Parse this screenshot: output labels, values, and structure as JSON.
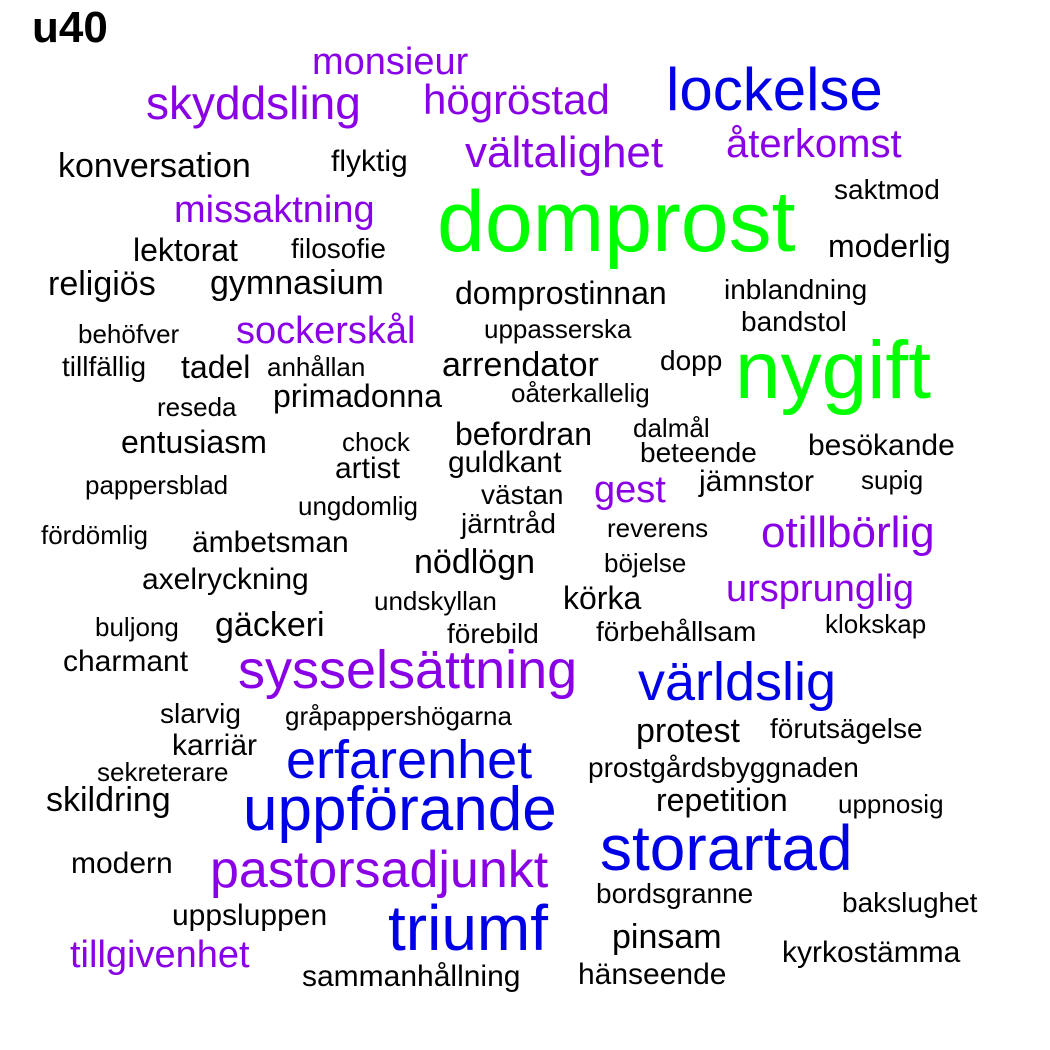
{
  "title": "u40",
  "colors": {
    "black": "#000000",
    "purple": "#8a00e6",
    "blue": "#0000e6",
    "green": "#00ff00"
  },
  "words": [
    {
      "text": "domprost",
      "color": "green"
    },
    {
      "text": "nygift",
      "color": "green"
    },
    {
      "text": "lockelse",
      "color": "blue"
    },
    {
      "text": "storartad",
      "color": "blue"
    },
    {
      "text": "uppförande",
      "color": "blue"
    },
    {
      "text": "triumf",
      "color": "blue"
    },
    {
      "text": "erfarenhet",
      "color": "blue"
    },
    {
      "text": "världslig",
      "color": "blue"
    },
    {
      "text": "sysselsättning",
      "color": "purple"
    },
    {
      "text": "pastorsadjunkt",
      "color": "purple"
    },
    {
      "text": "skyddsling",
      "color": "purple"
    },
    {
      "text": "högröstad",
      "color": "purple"
    },
    {
      "text": "vältalighet",
      "color": "purple"
    },
    {
      "text": "monsieur",
      "color": "purple"
    },
    {
      "text": "återkomst",
      "color": "purple"
    },
    {
      "text": "missaktning",
      "color": "purple"
    },
    {
      "text": "sockerskål",
      "color": "purple"
    },
    {
      "text": "otillbörlig",
      "color": "purple"
    },
    {
      "text": "ursprunglig",
      "color": "purple"
    },
    {
      "text": "gest",
      "color": "purple"
    },
    {
      "text": "tillgivenhet",
      "color": "purple"
    },
    {
      "text": "konversation",
      "color": "black"
    },
    {
      "text": "flyktig",
      "color": "black"
    },
    {
      "text": "saktmod",
      "color": "black"
    },
    {
      "text": "lektorat",
      "color": "black"
    },
    {
      "text": "filosofie",
      "color": "black"
    },
    {
      "text": "moderlig",
      "color": "black"
    },
    {
      "text": "religiös",
      "color": "black"
    },
    {
      "text": "gymnasium",
      "color": "black"
    },
    {
      "text": "domprostinnan",
      "color": "black"
    },
    {
      "text": "inblandning",
      "color": "black"
    },
    {
      "text": "bandstol",
      "color": "black"
    },
    {
      "text": "behöfver",
      "color": "black"
    },
    {
      "text": "uppasserska",
      "color": "black"
    },
    {
      "text": "tillfällig",
      "color": "black"
    },
    {
      "text": "tadel",
      "color": "black"
    },
    {
      "text": "anhållan",
      "color": "black"
    },
    {
      "text": "arrendator",
      "color": "black"
    },
    {
      "text": "dopp",
      "color": "black"
    },
    {
      "text": "reseda",
      "color": "black"
    },
    {
      "text": "primadonna",
      "color": "black"
    },
    {
      "text": "oåterkallelig",
      "color": "black"
    },
    {
      "text": "entusiasm",
      "color": "black"
    },
    {
      "text": "chock",
      "color": "black"
    },
    {
      "text": "befordran",
      "color": "black"
    },
    {
      "text": "dalmål",
      "color": "black"
    },
    {
      "text": "besökande",
      "color": "black"
    },
    {
      "text": "artist",
      "color": "black"
    },
    {
      "text": "guldkant",
      "color": "black"
    },
    {
      "text": "beteende",
      "color": "black"
    },
    {
      "text": "pappersblad",
      "color": "black"
    },
    {
      "text": "jämnstor",
      "color": "black"
    },
    {
      "text": "supig",
      "color": "black"
    },
    {
      "text": "västan",
      "color": "black"
    },
    {
      "text": "ungdomlig",
      "color": "black"
    },
    {
      "text": "järntråd",
      "color": "black"
    },
    {
      "text": "fördömlig",
      "color": "black"
    },
    {
      "text": "reverens",
      "color": "black"
    },
    {
      "text": "ämbetsman",
      "color": "black"
    },
    {
      "text": "nödlögn",
      "color": "black"
    },
    {
      "text": "böjelse",
      "color": "black"
    },
    {
      "text": "axelryckning",
      "color": "black"
    },
    {
      "text": "undskyllan",
      "color": "black"
    },
    {
      "text": "körka",
      "color": "black"
    },
    {
      "text": "buljong",
      "color": "black"
    },
    {
      "text": "gäckeri",
      "color": "black"
    },
    {
      "text": "förebild",
      "color": "black"
    },
    {
      "text": "förbehållsam",
      "color": "black"
    },
    {
      "text": "klokskap",
      "color": "black"
    },
    {
      "text": "charmant",
      "color": "black"
    },
    {
      "text": "slarvig",
      "color": "black"
    },
    {
      "text": "gråpappershögarna",
      "color": "black"
    },
    {
      "text": "karriär",
      "color": "black"
    },
    {
      "text": "protest",
      "color": "black"
    },
    {
      "text": "förutsägelse",
      "color": "black"
    },
    {
      "text": "sekreterare",
      "color": "black"
    },
    {
      "text": "prostgårdsbyggnaden",
      "color": "black"
    },
    {
      "text": "skildring",
      "color": "black"
    },
    {
      "text": "repetition",
      "color": "black"
    },
    {
      "text": "uppnosig",
      "color": "black"
    },
    {
      "text": "modern",
      "color": "black"
    },
    {
      "text": "bordsgranne",
      "color": "black"
    },
    {
      "text": "bakslughet",
      "color": "black"
    },
    {
      "text": "uppsluppen",
      "color": "black"
    },
    {
      "text": "pinsam",
      "color": "black"
    },
    {
      "text": "kyrkostämma",
      "color": "black"
    },
    {
      "text": "sammanhållning",
      "color": "black"
    },
    {
      "text": "hänseende",
      "color": "black"
    }
  ]
}
